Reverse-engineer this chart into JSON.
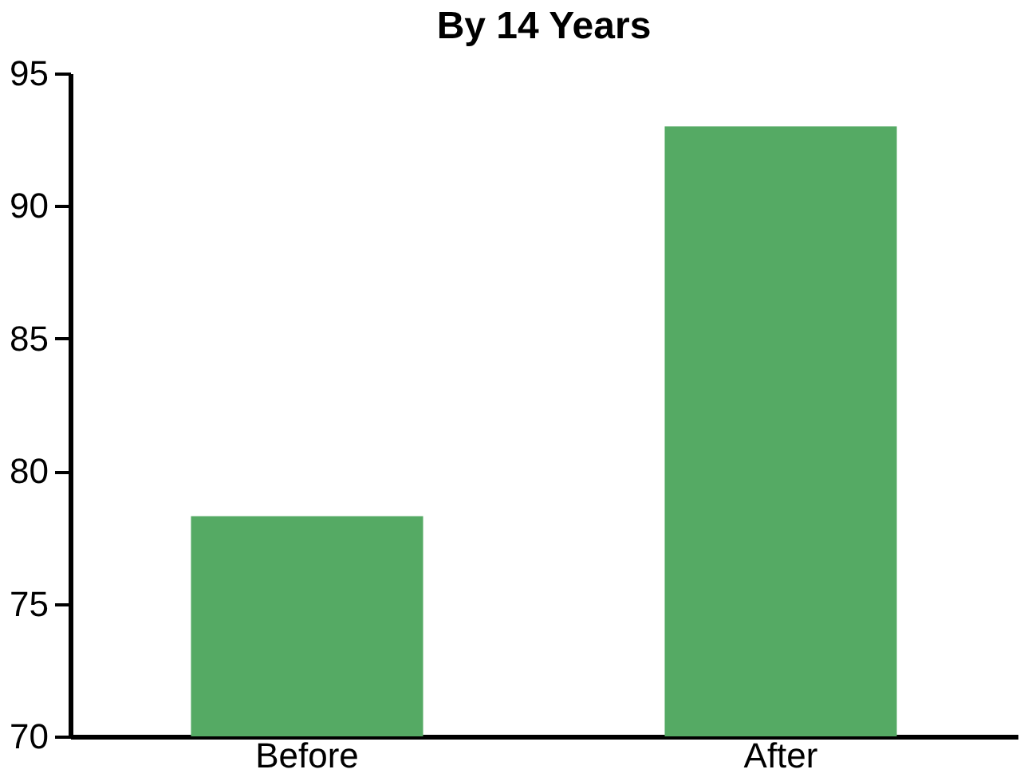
{
  "chart_data": {
    "type": "bar",
    "title": "By 14 Years",
    "categories": [
      "Before",
      "After"
    ],
    "values": [
      78.3,
      93.0
    ],
    "color": "#55aa64",
    "ylim": [
      70,
      95
    ],
    "yticks": [
      70,
      75,
      80,
      85,
      90,
      95
    ],
    "grid": false
  }
}
